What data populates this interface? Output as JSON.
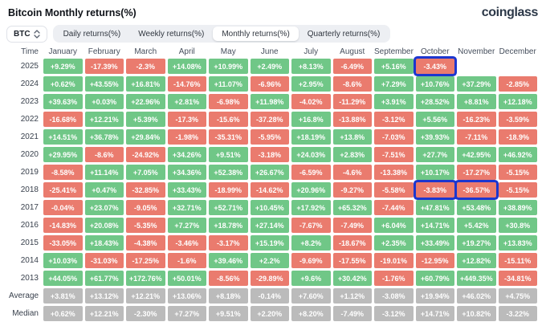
{
  "header": {
    "title": "Bitcoin Monthly returns(%)",
    "logo": "coinglass"
  },
  "controls": {
    "symbol_select": {
      "value": "BTC"
    },
    "tabs": [
      {
        "label": "Daily returns(%)",
        "active": false
      },
      {
        "label": "Weekly returns(%)",
        "active": false
      },
      {
        "label": "Monthly returns(%)",
        "active": true
      },
      {
        "label": "Quarterly returns(%)",
        "active": false
      }
    ]
  },
  "colors": {
    "positive": "#70c787",
    "negative": "#ea7b6e",
    "neutral": "#bbbbbb",
    "highlight": "#1c36cf"
  },
  "chart_data": {
    "type": "table",
    "title": "Bitcoin Monthly returns(%)",
    "time_header": "Time",
    "months": [
      "January",
      "February",
      "March",
      "April",
      "May",
      "June",
      "July",
      "August",
      "September",
      "October",
      "November",
      "December"
    ],
    "rows": [
      {
        "time": "2025",
        "neutral": false,
        "values": [
          "+9.29%",
          "-17.39%",
          "-2.3%",
          "+14.08%",
          "+10.99%",
          "+2.49%",
          "+8.13%",
          "-6.49%",
          "+5.16%",
          "-3.43%",
          null,
          null
        ]
      },
      {
        "time": "2024",
        "neutral": false,
        "values": [
          "+0.62%",
          "+43.55%",
          "+16.81%",
          "-14.76%",
          "+11.07%",
          "-6.96%",
          "+2.95%",
          "-8.6%",
          "+7.29%",
          "+10.76%",
          "+37.29%",
          "-2.85%"
        ]
      },
      {
        "time": "2023",
        "neutral": false,
        "values": [
          "+39.63%",
          "+0.03%",
          "+22.96%",
          "+2.81%",
          "-6.98%",
          "+11.98%",
          "-4.02%",
          "-11.29%",
          "+3.91%",
          "+28.52%",
          "+8.81%",
          "+12.18%"
        ]
      },
      {
        "time": "2022",
        "neutral": false,
        "values": [
          "-16.68%",
          "+12.21%",
          "+5.39%",
          "-17.3%",
          "-15.6%",
          "-37.28%",
          "+16.8%",
          "-13.88%",
          "-3.12%",
          "+5.56%",
          "-16.23%",
          "-3.59%"
        ]
      },
      {
        "time": "2021",
        "neutral": false,
        "values": [
          "+14.51%",
          "+36.78%",
          "+29.84%",
          "-1.98%",
          "-35.31%",
          "-5.95%",
          "+18.19%",
          "+13.8%",
          "-7.03%",
          "+39.93%",
          "-7.11%",
          "-18.9%"
        ]
      },
      {
        "time": "2020",
        "neutral": false,
        "values": [
          "+29.95%",
          "-8.6%",
          "-24.92%",
          "+34.26%",
          "+9.51%",
          "-3.18%",
          "+24.03%",
          "+2.83%",
          "-7.51%",
          "+27.7%",
          "+42.95%",
          "+46.92%"
        ]
      },
      {
        "time": "2019",
        "neutral": false,
        "values": [
          "-8.58%",
          "+11.14%",
          "+7.05%",
          "+34.36%",
          "+52.38%",
          "+26.67%",
          "-6.59%",
          "-4.6%",
          "-13.38%",
          "+10.17%",
          "-17.27%",
          "-5.15%"
        ]
      },
      {
        "time": "2018",
        "neutral": false,
        "values": [
          "-25.41%",
          "+0.47%",
          "-32.85%",
          "+33.43%",
          "-18.99%",
          "-14.62%",
          "+20.96%",
          "-9.27%",
          "-5.58%",
          "-3.83%",
          "-36.57%",
          "-5.15%"
        ]
      },
      {
        "time": "2017",
        "neutral": false,
        "values": [
          "-0.04%",
          "+23.07%",
          "-9.05%",
          "+32.71%",
          "+52.71%",
          "+10.45%",
          "+17.92%",
          "+65.32%",
          "-7.44%",
          "+47.81%",
          "+53.48%",
          "+38.89%"
        ]
      },
      {
        "time": "2016",
        "neutral": false,
        "values": [
          "-14.83%",
          "+20.08%",
          "-5.35%",
          "+7.27%",
          "+18.78%",
          "+27.14%",
          "-7.67%",
          "-7.49%",
          "+6.04%",
          "+14.71%",
          "+5.42%",
          "+30.8%"
        ]
      },
      {
        "time": "2015",
        "neutral": false,
        "values": [
          "-33.05%",
          "+18.43%",
          "-4.38%",
          "-3.46%",
          "-3.17%",
          "+15.19%",
          "+8.2%",
          "-18.67%",
          "+2.35%",
          "+33.49%",
          "+19.27%",
          "+13.83%"
        ]
      },
      {
        "time": "2014",
        "neutral": false,
        "values": [
          "+10.03%",
          "-31.03%",
          "-17.25%",
          "-1.6%",
          "+39.46%",
          "+2.2%",
          "-9.69%",
          "-17.55%",
          "-19.01%",
          "-12.95%",
          "+12.82%",
          "-15.11%"
        ]
      },
      {
        "time": "2013",
        "neutral": false,
        "values": [
          "+44.05%",
          "+61.77%",
          "+172.76%",
          "+50.01%",
          "-8.56%",
          "-29.89%",
          "+9.6%",
          "+30.42%",
          "-1.76%",
          "+60.79%",
          "+449.35%",
          "-34.81%"
        ]
      },
      {
        "time": "Average",
        "neutral": true,
        "values": [
          "+3.81%",
          "+13.12%",
          "+12.21%",
          "+13.06%",
          "+8.18%",
          "-0.14%",
          "+7.60%",
          "+1.12%",
          "-3.08%",
          "+19.94%",
          "+46.02%",
          "+4.75%"
        ]
      },
      {
        "time": "Median",
        "neutral": true,
        "values": [
          "+0.62%",
          "+12.21%",
          "-2.30%",
          "+7.27%",
          "+9.51%",
          "+2.20%",
          "+8.20%",
          "-7.49%",
          "-3.12%",
          "+14.71%",
          "+10.82%",
          "-3.22%"
        ]
      }
    ],
    "highlights": [
      {
        "time": "2025",
        "months": [
          "October"
        ]
      },
      {
        "time": "2018",
        "months": [
          "October",
          "November"
        ]
      }
    ]
  }
}
